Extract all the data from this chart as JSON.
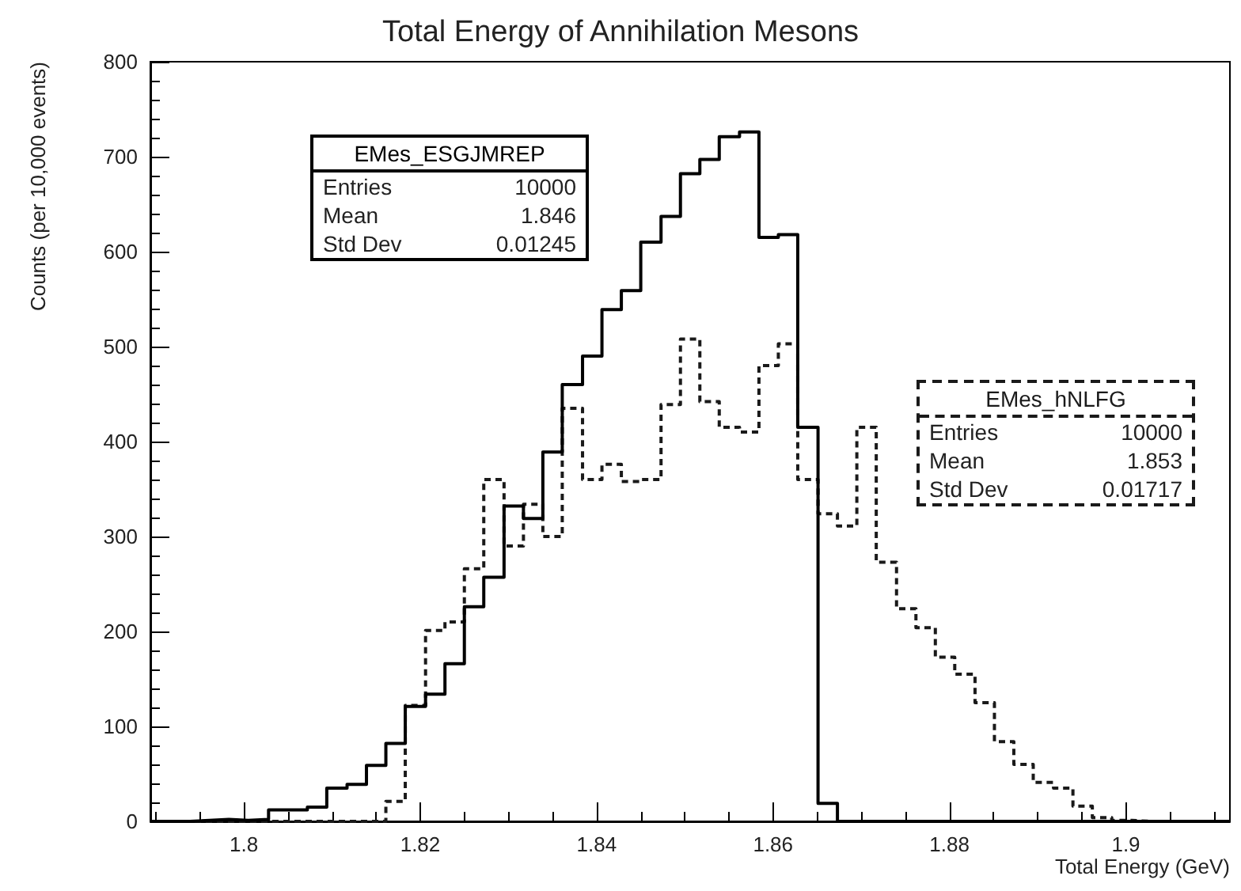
{
  "chart_data": {
    "type": "histogram",
    "title": "Total Energy of Annihilation Mesons",
    "xlabel": "Total Energy (GeV)",
    "ylabel": "Counts (per 10,000 events)",
    "bins": [
      1.7894,
      1.7916,
      1.7939,
      1.7961,
      1.7983,
      1.8005,
      1.8028,
      1.805,
      1.8072,
      1.8094,
      1.8117,
      1.8139,
      1.8161,
      1.8183,
      1.8206,
      1.8228,
      1.825,
      1.8272,
      1.8295,
      1.8317,
      1.8339,
      1.8361,
      1.8384,
      1.8406,
      1.8428,
      1.845,
      1.8473,
      1.8495,
      1.8517,
      1.8539,
      1.8562,
      1.8584,
      1.8606,
      1.8628,
      1.8651,
      1.8673,
      1.8695,
      1.8717,
      1.874,
      1.8762,
      1.8784,
      1.8806,
      1.8829,
      1.8851,
      1.8873,
      1.8895,
      1.8918,
      1.894,
      1.8962,
      1.8984,
      1.9007,
      1.9029,
      1.9051,
      1.9073,
      1.9096,
      1.9118
    ],
    "series": [
      {
        "name": "EMes_ESGJMREP",
        "color": "#000000",
        "line_style": "solid",
        "values": [
          0,
          0,
          1,
          2,
          1,
          2,
          12,
          12,
          15,
          35,
          39,
          59,
          82,
          121,
          134,
          166,
          226,
          257,
          332,
          319,
          389,
          460,
          490,
          539,
          559,
          610,
          637,
          682,
          697,
          721,
          726,
          615,
          618,
          415,
          19,
          0,
          0,
          0,
          0,
          0,
          0,
          0,
          0,
          0,
          0,
          0,
          0,
          0,
          0,
          0,
          0,
          0,
          0,
          0,
          0
        ]
      },
      {
        "name": "EMes_hNLFG",
        "color": "#1a1a1a",
        "line_style": "dashed",
        "values": [
          0,
          0,
          0,
          0,
          0,
          0,
          0,
          0,
          0,
          0,
          0,
          0,
          21,
          122,
          201,
          210,
          266,
          360,
          290,
          334,
          300,
          435,
          360,
          376,
          358,
          360,
          439,
          508,
          442,
          415,
          410,
          480,
          503,
          360,
          324,
          311,
          415,
          273,
          224,
          204,
          173,
          155,
          125,
          84,
          60,
          41,
          35,
          16,
          4,
          1,
          0,
          0,
          0,
          0,
          0
        ]
      }
    ],
    "annotations": [
      "Entries",
      "10000",
      "Mean",
      "1.846",
      "Std Dev",
      "0.01245",
      "Entries",
      "10000",
      "Mean",
      "1.853",
      "Std Dev",
      "0.01717"
    ],
    "xlim": [
      1.7894,
      1.9118
    ],
    "xticks": [
      1.8,
      1.82,
      1.84,
      1.86,
      1.88,
      1.9
    ],
    "ylim": [
      0,
      800
    ],
    "yticks": [
      0,
      100,
      200,
      300,
      400,
      500,
      600,
      700,
      800
    ],
    "grid": false,
    "legend": false
  }
}
